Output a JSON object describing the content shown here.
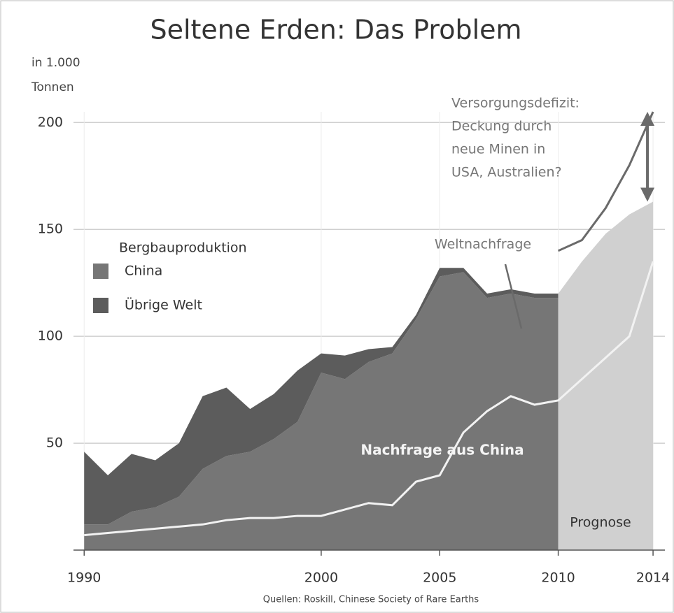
{
  "chart_data": {
    "type": "area",
    "title": "Seltene Erden: Das Problem",
    "ylabel": [
      "in 1.000",
      "Tonnen"
    ],
    "legend_title": "Bergbauproduktion",
    "deficit_note": [
      "Versorgungsdefizit:",
      "Deckung durch",
      "neue Minen in",
      "USA, Australien?"
    ],
    "source": "Quellen: Roskill, Chinese Society of Rare Earths",
    "x": [
      1990,
      1991,
      1992,
      1993,
      1994,
      1995,
      1996,
      1997,
      1998,
      1999,
      2000,
      2001,
      2002,
      2003,
      2004,
      2005,
      2006,
      2007,
      2008,
      2009,
      2010,
      2011,
      2012,
      2013,
      2014
    ],
    "xlim": [
      1989.55,
      2014.5
    ],
    "xticks": [
      1990,
      2000,
      2005,
      2010,
      2014
    ],
    "ylim": [
      0,
      205
    ],
    "yticks": [
      50,
      100,
      150,
      200
    ],
    "grid": true,
    "series": [
      {
        "name": "China",
        "kind": "area",
        "stack": true,
        "color": "#767676",
        "values": [
          12,
          12,
          18,
          20,
          25,
          38,
          44,
          46,
          52,
          60,
          83,
          80,
          88,
          92,
          108,
          128,
          130,
          118,
          120,
          118,
          118,
          null,
          null,
          null,
          null
        ]
      },
      {
        "name": "Übrige Welt",
        "kind": "area",
        "stack": true,
        "color": "#5c5c5c",
        "values": [
          34,
          23,
          27,
          22,
          25,
          34,
          32,
          20,
          21,
          24,
          9,
          11,
          6,
          3,
          2,
          4,
          2,
          2,
          2,
          2,
          2,
          null,
          null,
          null,
          null
        ]
      },
      {
        "name": "Prognose",
        "kind": "area",
        "stack": false,
        "color": "#d0d0d0",
        "values": [
          null,
          null,
          null,
          null,
          null,
          null,
          null,
          null,
          null,
          null,
          null,
          null,
          null,
          null,
          null,
          null,
          null,
          null,
          null,
          null,
          120,
          135,
          148,
          157,
          163
        ]
      },
      {
        "name": "Nachfrage aus China",
        "kind": "line",
        "color": "#f2f2f2",
        "values": [
          7,
          8,
          9,
          10,
          11,
          12,
          14,
          15,
          15,
          16,
          16,
          19,
          22,
          21,
          32,
          35,
          55,
          65,
          72,
          68,
          70,
          80,
          90,
          100,
          135
        ]
      },
      {
        "name": "Weltnachfrage",
        "kind": "line",
        "color": "#6a6a6a",
        "values": [
          null,
          null,
          null,
          null,
          null,
          null,
          null,
          null,
          null,
          null,
          null,
          null,
          null,
          null,
          null,
          null,
          null,
          null,
          null,
          null,
          140,
          145,
          160,
          180,
          205
        ]
      }
    ]
  }
}
